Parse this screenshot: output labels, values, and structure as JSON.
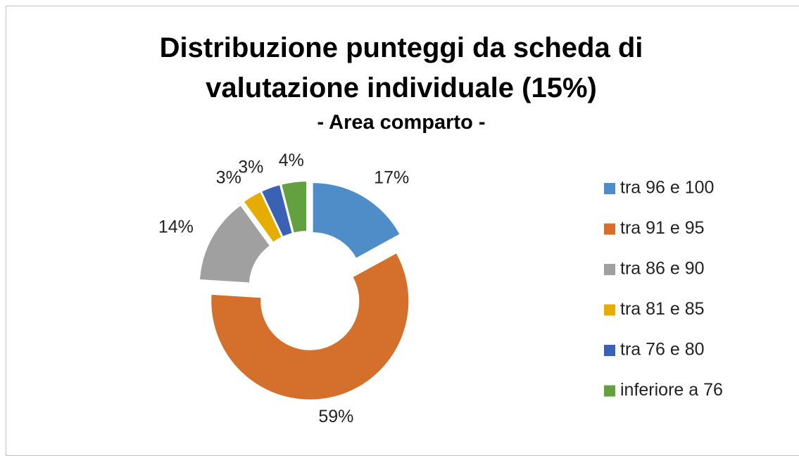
{
  "chart_data": {
    "type": "donut",
    "title": "Distribuzione punteggi da scheda di valutazione individuale (15%)",
    "subtitle": "- Area comparto -",
    "categories": [
      "tra 96 e 100",
      "tra 91 e 95",
      "tra 86 e 90",
      "tra 81 e 85",
      "tra 76 e 80",
      "inferiore a 76"
    ],
    "values": [
      17,
      59,
      14,
      3,
      3,
      4
    ],
    "value_labels": [
      "17%",
      "59%",
      "14%",
      "3%",
      "3%",
      "4%"
    ],
    "colors": [
      "#4f8dc9",
      "#d4702b",
      "#a0a0a0",
      "#e6ac00",
      "#3a62b4",
      "#63a040"
    ],
    "legend": "right"
  }
}
